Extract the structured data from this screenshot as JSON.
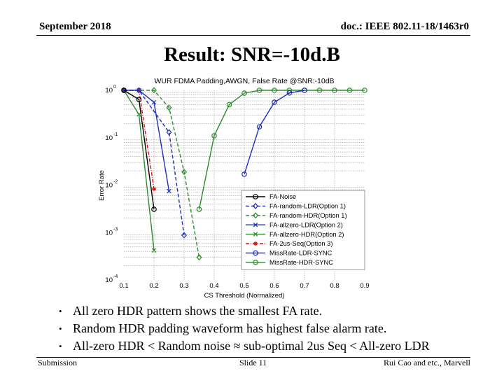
{
  "header": {
    "date": "September 2018",
    "doc_id": "doc.: IEEE 802.11-18/1463r0"
  },
  "slide": {
    "title": "Result: SNR=-10d.B"
  },
  "bullets": [
    "All zero HDR pattern shows the smallest FA rate.",
    "Random HDR padding waveform has highest false alarm rate.",
    "All-zero HDR < Random noise ≈ sub-optimal 2us Seq < All-zero LDR"
  ],
  "footer": {
    "left": "Submission",
    "center": "Slide 11",
    "right": "Rui Cao and etc., Marvell"
  },
  "chart_data": {
    "type": "line",
    "title": "WUR FDMA Padding,AWGN, False Rate @SNR:-10dB",
    "xlabel": "CS Threshold (Normalized)",
    "ylabel": "Error Rate",
    "xlim": [
      0.1,
      0.9
    ],
    "ylim": [
      0.0001,
      1
    ],
    "yscale": "log",
    "grid": true,
    "x_ticks": [
      "0.1",
      "0.2",
      "0.3",
      "0.4",
      "0.5",
      "0.6",
      "0.7",
      "0.8",
      "0.9"
    ],
    "y_ticks": [
      "10^0",
      "10^-1",
      "10^-2",
      "10^-3",
      "10^-4"
    ],
    "legend_position": "lower right (inside)",
    "series": [
      {
        "name": "FA-Noise",
        "color": "#000000",
        "dash": "solid",
        "marker": "circle",
        "x": [
          0.1,
          0.15,
          0.2
        ],
        "y": [
          1.0,
          0.64,
          0.0031
        ]
      },
      {
        "name": "FA-random-LDR(Option 1)",
        "color": "#1f2fbf",
        "dash": "dashed",
        "marker": "diamond",
        "x": [
          0.1,
          0.15,
          0.25,
          0.3
        ],
        "y": [
          1.0,
          1.0,
          0.13,
          0.00088
        ]
      },
      {
        "name": "FA-random-HDR(Option 1)",
        "color": "#2e8b2e",
        "dash": "dashed",
        "marker": "diamond",
        "x": [
          0.1,
          0.2,
          0.25,
          0.3,
          0.35
        ],
        "y": [
          1.0,
          1.0,
          0.43,
          0.019,
          0.0003
        ]
      },
      {
        "name": "FA-allzero-LDR(Option 2)",
        "color": "#1f2fbf",
        "dash": "solid",
        "marker": "x",
        "x": [
          0.1,
          0.15,
          0.2,
          0.25
        ],
        "y": [
          1.0,
          1.0,
          0.56,
          0.0075
        ]
      },
      {
        "name": "FA-allzero-HDR(Option 2)",
        "color": "#2e8b2e",
        "dash": "solid",
        "marker": "x",
        "x": [
          0.1,
          0.15,
          0.2
        ],
        "y": [
          1.0,
          0.31,
          0.00042
        ]
      },
      {
        "name": "FA-2us-Seq(Option 3)",
        "color": "#e01010",
        "dash": "dashdot",
        "marker": "star",
        "x": [
          0.1,
          0.15,
          0.2
        ],
        "y": [
          1.0,
          1.0,
          0.0083
        ]
      },
      {
        "name": "MissRate-LDR-SYNC",
        "color": "#1f2fbf",
        "dash": "solid",
        "marker": "circle",
        "x": [
          0.5,
          0.55,
          0.6,
          0.65,
          0.7
        ],
        "y": [
          0.017,
          0.17,
          0.56,
          0.88,
          1.0
        ]
      },
      {
        "name": "MissRate-HDR-SYNC",
        "color": "#2e8b2e",
        "dash": "solid",
        "marker": "circle",
        "x": [
          0.35,
          0.4,
          0.45,
          0.5,
          0.55,
          0.6,
          0.65,
          0.7,
          0.75,
          0.8,
          0.85,
          0.9
        ],
        "y": [
          0.0031,
          0.11,
          0.5,
          0.87,
          1.0,
          1.0,
          1.0,
          1.0,
          1.0,
          1.0,
          1.0,
          1.0
        ]
      }
    ]
  }
}
